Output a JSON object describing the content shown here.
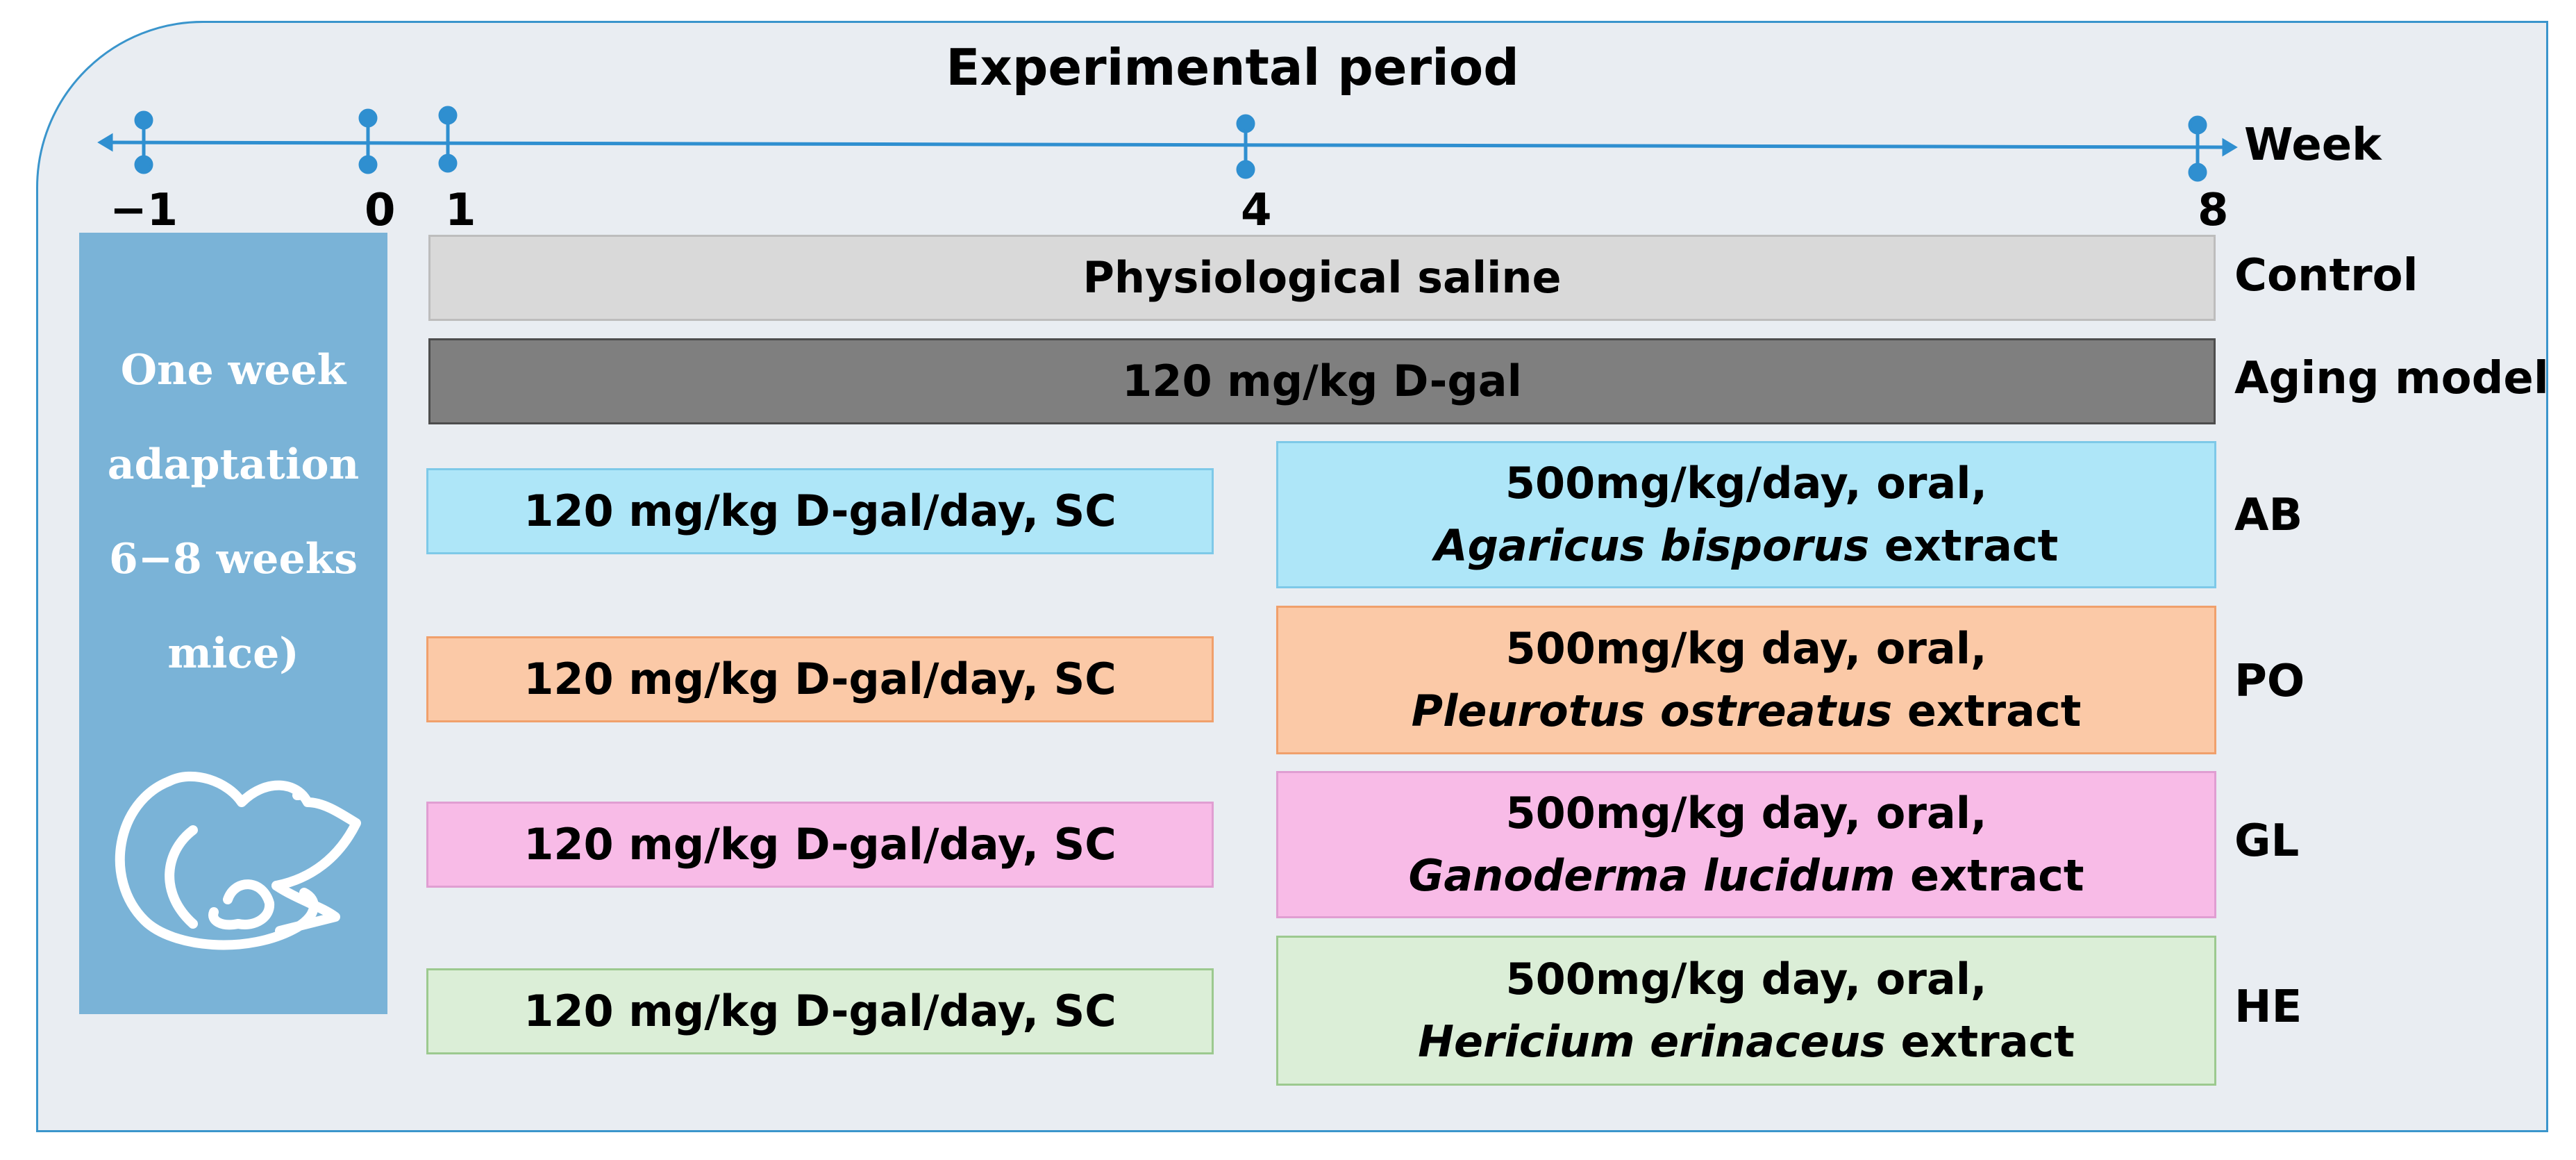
{
  "diagram": {
    "title": "Experimental period",
    "timeline": {
      "unit": "Week",
      "ticks": [
        "−1",
        "0",
        "1",
        "4",
        "8"
      ]
    },
    "adaptation": {
      "lines": [
        "One week",
        "adaptation",
        "6−8 weeks",
        "mice)"
      ],
      "icon": "mouse-icon"
    },
    "control": {
      "bar": "Physiological saline",
      "label": "Control"
    },
    "aging": {
      "bar": "120 mg/kg D-gal",
      "label": "Aging model"
    },
    "groups": [
      {
        "label": "AB",
        "sc": "120 mg/kg D-gal/day, SC",
        "oral": "500mg/kg/day, oral,",
        "species": "Agaricus bisporus",
        "suffix": " extract"
      },
      {
        "label": "PO",
        "sc": "120 mg/kg D-gal/day, SC",
        "oral": "500mg/kg day, oral,",
        "species": "Pleurotus ostreatus",
        "suffix": " extract"
      },
      {
        "label": "GL",
        "sc": "120 mg/kg D-gal/day, SC",
        "oral": "500mg/kg day, oral,",
        "species": "Ganoderma lucidum",
        "suffix": " extract"
      },
      {
        "label": "HE",
        "sc": "120 mg/kg D-gal/day, SC",
        "oral": "500mg/kg day, oral,",
        "species": "Hericium erinaceus",
        "suffix": " extract"
      }
    ],
    "colors": {
      "frame_border": "#3a95cc",
      "frame_bg": "#e9edf2",
      "adaptation_bg": "#7ab3d7",
      "control_bg": "#d9d9d9",
      "aging_bg": "#7f7f7f",
      "ab_bg": "#aee6f8",
      "po_bg": "#fbc9a7",
      "gl_bg": "#f8bbe7",
      "he_bg": "#dbeed7"
    }
  }
}
